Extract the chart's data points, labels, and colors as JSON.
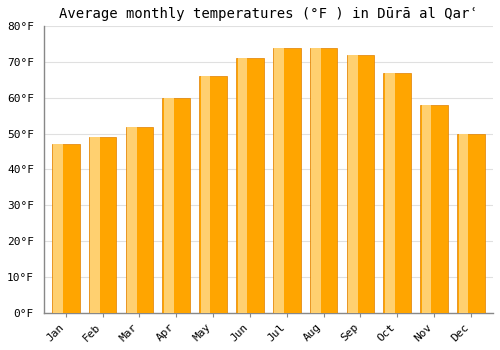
{
  "title": "Average monthly temperatures (°F ) in Dūrā al Qarʿ",
  "months": [
    "Jan",
    "Feb",
    "Mar",
    "Apr",
    "May",
    "Jun",
    "Jul",
    "Aug",
    "Sep",
    "Oct",
    "Nov",
    "Dec"
  ],
  "values": [
    47,
    49,
    52,
    60,
    66,
    71,
    74,
    74,
    72,
    67,
    58,
    50
  ],
  "bar_color_face": "#FFA500",
  "bar_color_edge": "#E08000",
  "bar_color_light": "#FFD070",
  "ylim": [
    0,
    80
  ],
  "yticks": [
    0,
    10,
    20,
    30,
    40,
    50,
    60,
    70,
    80
  ],
  "ytick_labels": [
    "0°F",
    "10°F",
    "20°F",
    "30°F",
    "40°F",
    "50°F",
    "60°F",
    "70°F",
    "80°F"
  ],
  "background_color": "#FFFFFF",
  "grid_color": "#E0E0E0",
  "title_fontsize": 10,
  "tick_fontsize": 8,
  "bar_width": 0.75
}
